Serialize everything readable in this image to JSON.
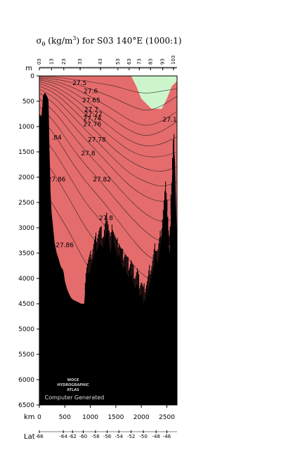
{
  "chart_data": {
    "type": "contour",
    "title": {
      "sigma": "σ",
      "sub": "θ",
      "units_pre": " (kg/m",
      "sup": "3",
      "units_post": ") for S03 140°E (1000:1)"
    },
    "y_unit": "m",
    "x_unit": "km",
    "lat_label": "Lat",
    "ylim": [
      0,
      6500
    ],
    "xlim": [
      0,
      2700
    ],
    "y_ticks": [
      0,
      500,
      1000,
      1500,
      2000,
      2500,
      3000,
      3500,
      4000,
      4500,
      5000,
      5500,
      6000,
      6500
    ],
    "x_ticks": [
      0,
      500,
      1000,
      1500,
      2000,
      2500
    ],
    "lat_ticks": [
      {
        "km": 0,
        "label": "-66"
      },
      {
        "km": 470,
        "label": "-64"
      },
      {
        "km": 650,
        "label": "-62"
      },
      {
        "km": 860,
        "label": "-60"
      },
      {
        "km": 1100,
        "label": "-58"
      },
      {
        "km": 1330,
        "label": "-56"
      },
      {
        "km": 1560,
        "label": "-54"
      },
      {
        "km": 1800,
        "label": "-52"
      },
      {
        "km": 2040,
        "label": "-50"
      },
      {
        "km": 2290,
        "label": "-48"
      },
      {
        "km": 2500,
        "label": "-46"
      }
    ],
    "station_ticks": [
      {
        "km": 0,
        "label": "03"
      },
      {
        "km": 240,
        "label": "13"
      },
      {
        "km": 480,
        "label": "23"
      },
      {
        "km": 800,
        "label": "33"
      },
      {
        "km": 1200,
        "label": "43"
      },
      {
        "km": 1540,
        "label": "53"
      },
      {
        "km": 1760,
        "label": "63"
      },
      {
        "km": 1960,
        "label": "73"
      },
      {
        "km": 2180,
        "label": "83"
      },
      {
        "km": 2420,
        "label": "93"
      },
      {
        "km": 2630,
        "label": "103"
      }
    ],
    "contour_labels": [
      {
        "text": "27.5",
        "x": 650,
        "y": 180
      },
      {
        "text": "27.6",
        "x": 870,
        "y": 340
      },
      {
        "text": "27.65",
        "x": 840,
        "y": 520
      },
      {
        "text": "27.7",
        "x": 880,
        "y": 700
      },
      {
        "text": "27.72",
        "x": 880,
        "y": 790
      },
      {
        "text": "27.74",
        "x": 860,
        "y": 880
      },
      {
        "text": "27.76",
        "x": 860,
        "y": 990
      },
      {
        "text": "27.1",
        "x": 2420,
        "y": 900
      },
      {
        "text": "27.78",
        "x": 950,
        "y": 1300
      },
      {
        "text": ".84",
        "x": 240,
        "y": 1260
      },
      {
        "text": "27.8",
        "x": 820,
        "y": 1570
      },
      {
        "text": "27.82",
        "x": 1050,
        "y": 2080
      },
      {
        "text": "27.86",
        "x": 160,
        "y": 2080
      },
      {
        "text": "27.8",
        "x": 1170,
        "y": 2850
      },
      {
        "text": "27.86",
        "x": 320,
        "y": 3380
      }
    ],
    "colors": {
      "light_red": "#f4b1b1",
      "mid_red": "#ec8f8f",
      "red": "#e46c6c",
      "pale_green": "#ccf5cc",
      "light_green": "#a3f0a3",
      "mid_green": "#7ee87e",
      "green": "#55e055",
      "bright_green": "#33ff33",
      "bottom": "#000000"
    },
    "watermark": {
      "line1": "WOCE",
      "line2": "HYDROGRAPHIC",
      "line3": "ATLAS",
      "credit": "Computer Generated"
    }
  }
}
